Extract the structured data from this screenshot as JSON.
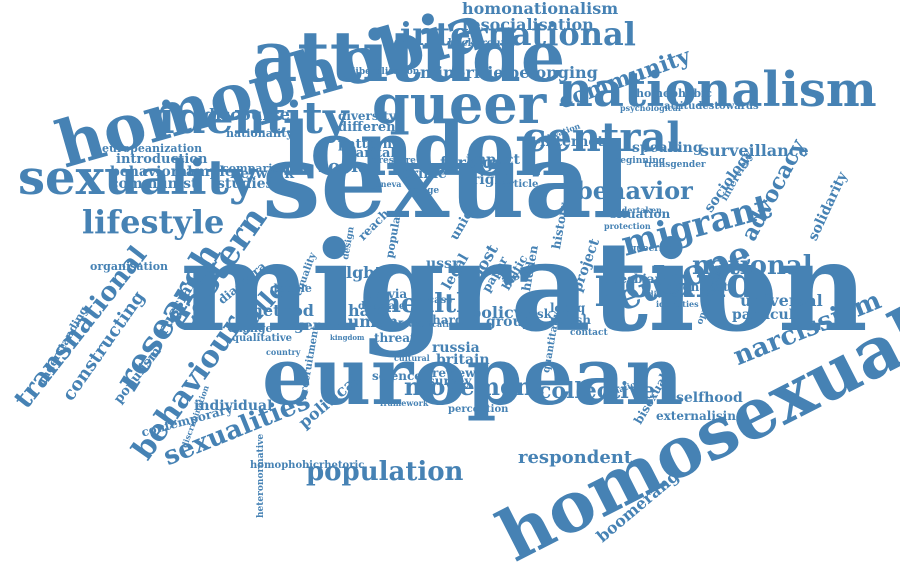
{
  "color": "#4682b4",
  "words": [
    "migration",
    "sexual",
    "london",
    "european",
    "homosexuality",
    "attitude",
    "homophobia",
    "queer",
    "nationalism",
    "sexuality",
    "identity",
    "central",
    "international",
    "poland",
    "europe",
    "migrant",
    "lifestyle",
    "eastern",
    "research",
    "behaviour",
    "transnational",
    "sexualities",
    "movement",
    "health",
    "population",
    "national",
    "advocacy",
    "narcissism",
    "community",
    "behavior",
    "sallee",
    "collective",
    "respondent",
    "boomerang",
    "homonationalism",
    "resocialisation",
    "minorities",
    "belonging",
    "discourse",
    "social",
    "foreign",
    "crime",
    "internet",
    "speaking",
    "surveillance",
    "introduction",
    "communist",
    "studies",
    "network",
    "sample",
    "behavioral",
    "russian",
    "constructing",
    "populism",
    "method",
    "policy",
    "group",
    "lgbt",
    "ussr",
    "hate",
    "human",
    "general",
    "political",
    "individual",
    "contemporary",
    "solidarity",
    "sociology",
    "universal",
    "particular",
    "selfhood",
    "externalising",
    "bisexual",
    "russia",
    "britain",
    "review",
    "survey",
    "science",
    "polish",
    "lgbtq",
    "project",
    "pattern",
    "marital",
    "different",
    "diversity",
    "nationality",
    "comparison",
    "impact",
    "right",
    "article",
    "understanding",
    "organisation",
    "diaspora",
    "equality",
    "change",
    "double",
    "qualitative",
    "nationalist",
    "lesbian",
    "situation",
    "interview",
    "homophobic",
    "attitudestowards",
    "psychological",
    "background",
    "liberalisation",
    "europeanization",
    "homophobicrhetoric",
    "heteronormative",
    "perception",
    "framework",
    "motivation",
    "queering",
    "beginning",
    "transgender",
    "undertaken",
    "reach",
    "threat",
    "latvia",
    "baltic",
    "history",
    "hidden",
    "paper",
    "issue",
    "legal",
    "risk",
    "post",
    "union",
    "popular",
    "design",
    "male",
    "depth",
    "hard",
    "case",
    "result",
    "contact",
    "difference",
    "opportunities",
    "relation",
    "quantitative",
    "recruitment",
    "country",
    "discrimination",
    "kingdom",
    "pressure",
    "geneva",
    "range",
    "cultural",
    "identities",
    "identification",
    "protection"
  ]
}
